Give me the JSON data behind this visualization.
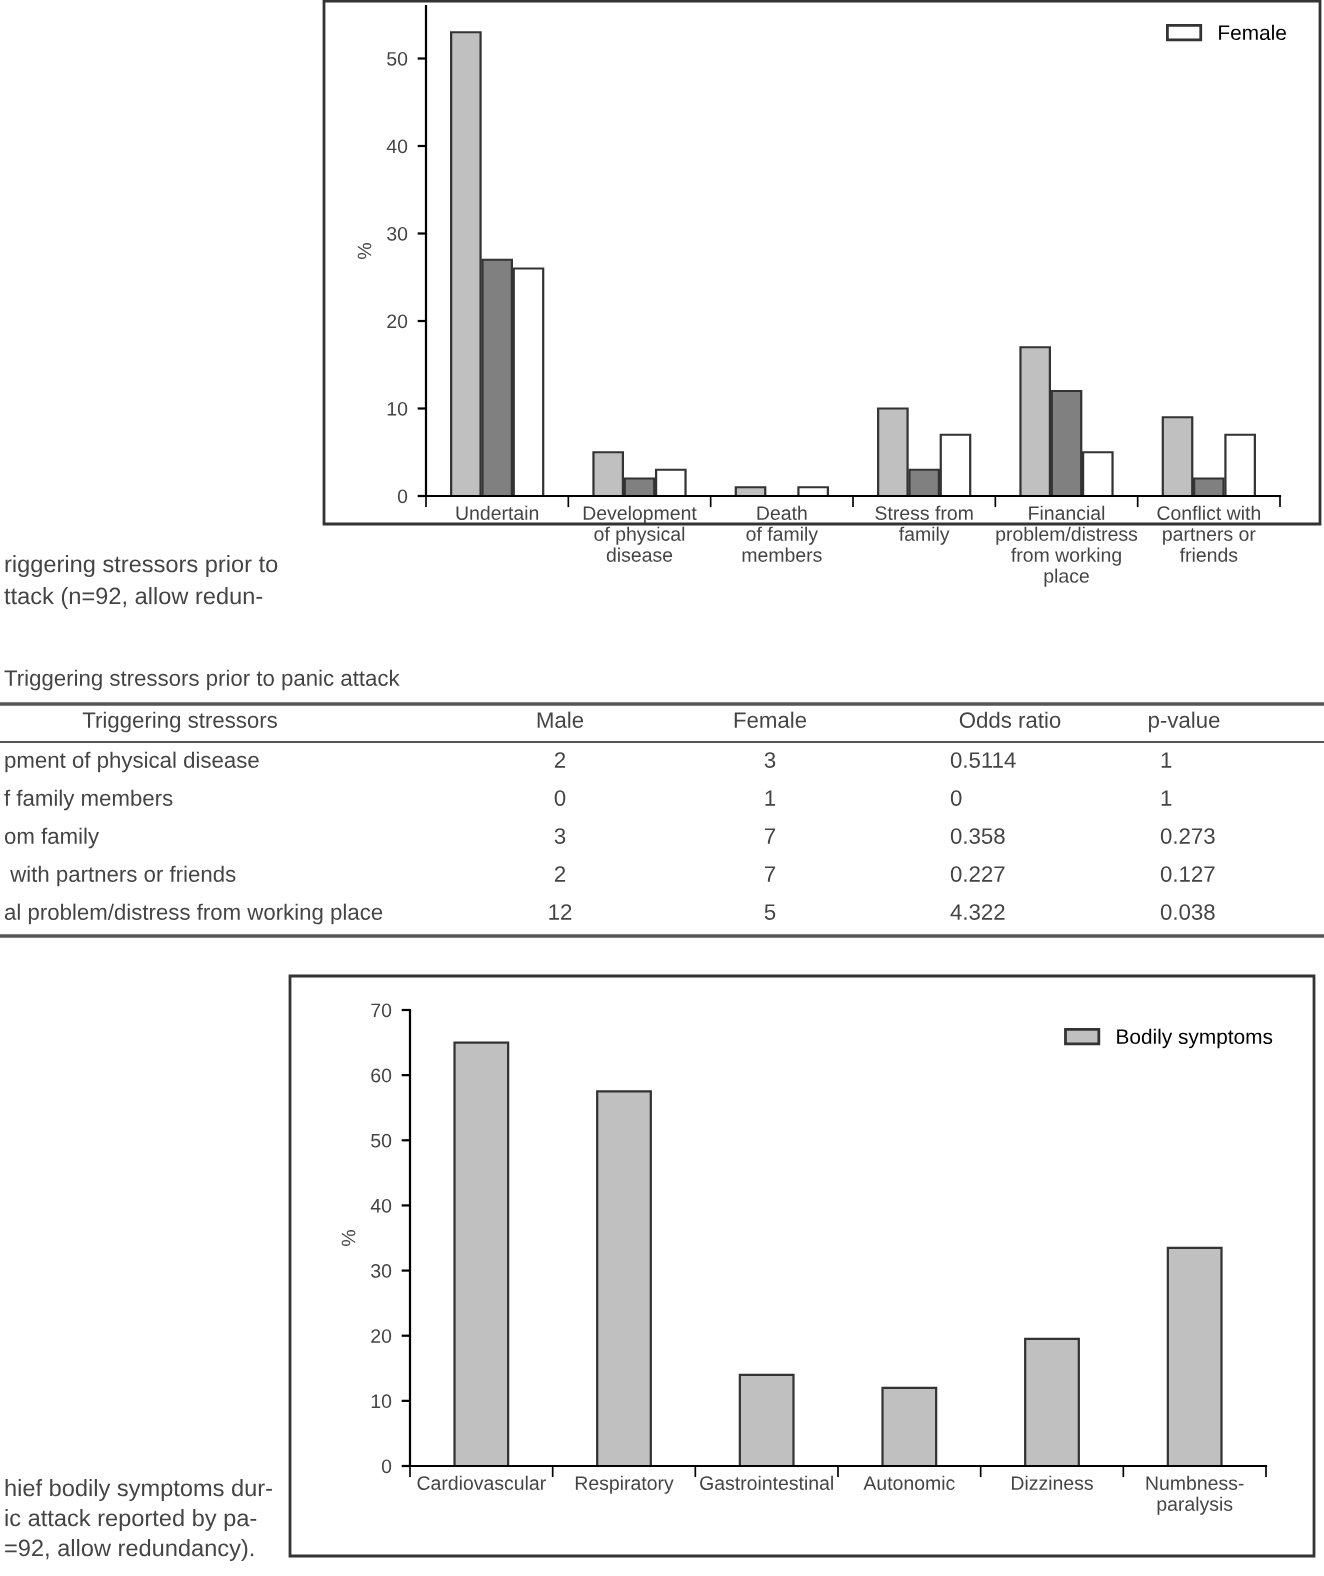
{
  "chart_data": [
    {
      "type": "bar",
      "ylabel": "%",
      "categories": [
        "Undertain",
        "Development\nof physical\ndisease",
        "Death\nof family\nmembers",
        "Stress from\nfamily",
        "Financial\nproblem/distress\nfrom working\nplace",
        "Conflict with\npartners or\nfriends"
      ],
      "series": [
        {
          "color": "#c0c0c0",
          "values": [
            53,
            5,
            1,
            10,
            17,
            9
          ]
        },
        {
          "color": "#808080",
          "values": [
            27,
            2,
            0,
            3,
            12,
            2
          ]
        },
        {
          "name": "Female",
          "color": "#ffffff",
          "values": [
            26,
            3,
            1,
            7,
            5,
            7
          ]
        }
      ],
      "ylim": [
        0,
        56
      ],
      "yticks": [
        0,
        10,
        20,
        30,
        40,
        50
      ],
      "grid": false,
      "legend": "top right",
      "annotations": [
        "riggering stressors prior to",
        "ttack (n=92, allow redun-"
      ]
    },
    {
      "type": "other",
      "title": "Triggering stressors prior to panic attack",
      "categories": [
        "Triggering stressors",
        "Male",
        "Female",
        "Odds ratio",
        "p-value"
      ],
      "annotations": [
        "pment of physical disease",
        "2",
        "3",
        "0.5114",
        "1",
        "f family members",
        "0",
        "1",
        "0",
        "1",
        "om family",
        "3",
        "7",
        "0.358",
        "0.273",
        " with partners or friends",
        "2",
        "7",
        "0.227",
        "0.127",
        "al problem/distress from working place",
        "12",
        "5",
        "4.322",
        "0.038"
      ]
    },
    {
      "type": "bar",
      "ylabel": "%",
      "categories": [
        "Cardiovascular",
        "Respiratory",
        "Gastrointestinal",
        "Autonomic",
        "Dizziness",
        "Numbness-\nparalysis"
      ],
      "series": [
        {
          "name": "Bodily symptoms",
          "color": "#c0c0c0",
          "values": [
            65,
            57.5,
            14,
            12,
            19.5,
            33.5
          ]
        }
      ],
      "ylim": [
        0,
        70
      ],
      "yticks": [
        0,
        10,
        20,
        30,
        40,
        50,
        60,
        70
      ],
      "grid": false,
      "legend": "top right",
      "annotations": [
        "hief bodily symptoms dur-",
        "ic attack reported by pa-",
        "=92, allow redundancy)."
      ]
    }
  ]
}
